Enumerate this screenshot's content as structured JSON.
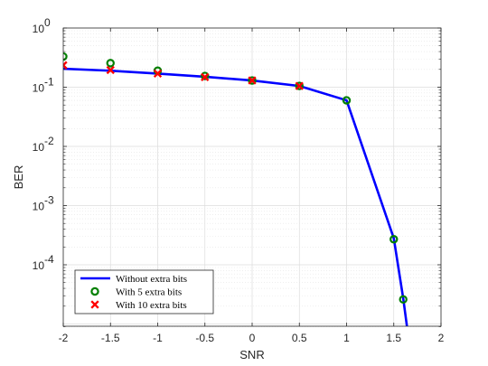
{
  "chart_data": {
    "type": "line",
    "xlabel": "SNR",
    "ylabel": "BER",
    "xlim": [
      -2,
      2
    ],
    "ylim": [
      1e-06,
      1
    ],
    "yscale": "log",
    "grid": true,
    "legend_position": "bottom-left",
    "x_ticks": [
      "-2",
      "-1.5",
      "-1",
      "-0.5",
      "0",
      "0.5",
      "1",
      "1.5",
      "2"
    ],
    "y_ticks": [
      {
        "base": "10",
        "exp": "0"
      },
      {
        "base": "10",
        "exp": "-1"
      },
      {
        "base": "10",
        "exp": "-2"
      },
      {
        "base": "10",
        "exp": "-3"
      },
      {
        "base": "10",
        "exp": "-4"
      }
    ],
    "series": [
      {
        "name": "Without extra bits",
        "style": "line",
        "color": "#0000ff",
        "x": [
          -2,
          -1.5,
          -1,
          -0.5,
          0,
          0.5,
          1,
          1.5,
          1.6,
          1.65
        ],
        "y": [
          0.205,
          0.19,
          0.17,
          0.15,
          0.13,
          0.105,
          0.06,
          0.00028,
          2.7e-05,
          6.8e-06
        ]
      },
      {
        "name": "With 5 extra bits",
        "style": "circle",
        "color": "#008000",
        "x": [
          -2,
          -1.5,
          -1,
          -0.5,
          0,
          0.5,
          1,
          1.5,
          1.6
        ],
        "y": [
          0.33,
          0.255,
          0.19,
          0.155,
          0.13,
          0.105,
          0.06,
          0.00027,
          2.6e-05
        ]
      },
      {
        "name": "With 10 extra bits",
        "style": "x",
        "color": "#ff0000",
        "x": [
          -2,
          -1.5,
          -1,
          -0.5,
          0,
          0.5
        ],
        "y": [
          0.235,
          0.195,
          0.17,
          0.148,
          0.13,
          0.105
        ]
      }
    ]
  }
}
